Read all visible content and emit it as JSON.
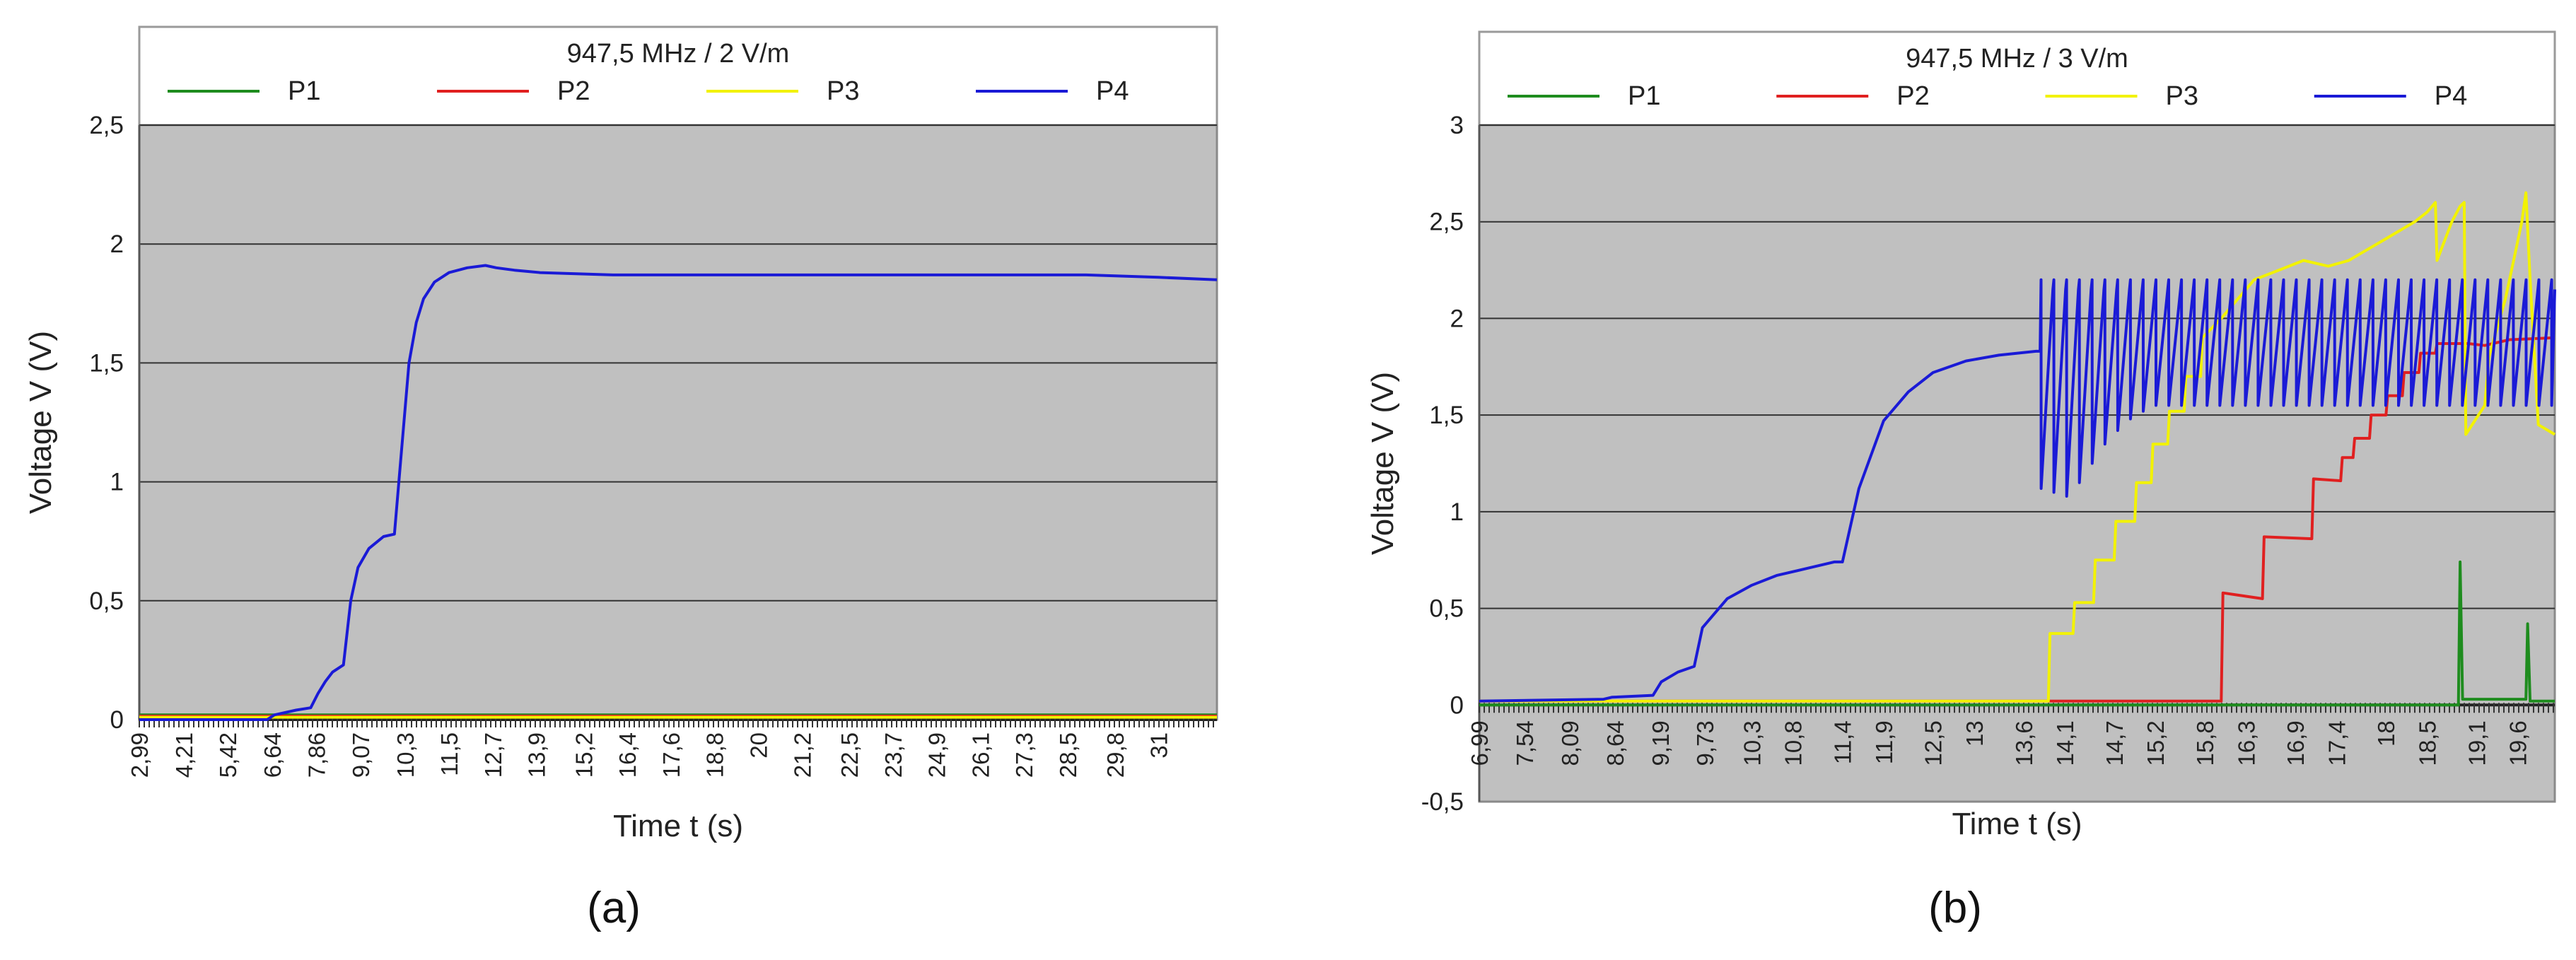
{
  "chart_data": [
    {
      "type": "line",
      "panel_label": "(a)",
      "title": "947,5 MHz / 2 V/m",
      "xlabel": "Time t (s)",
      "ylabel": "Voltage V (V)",
      "ylim": [
        0,
        2.5
      ],
      "yticks": [
        "0",
        "0,5",
        "1",
        "1,5",
        "2",
        "2,5"
      ],
      "y_tick_values": [
        0,
        0.5,
        1,
        1.5,
        2,
        2.5
      ],
      "xlim": [
        2.99,
        32.6
      ],
      "xticks": [
        "2,99",
        "4,21",
        "5,42",
        "6,64",
        "7,86",
        "9,07",
        "10,3",
        "11,5",
        "12,7",
        "13,9",
        "15,2",
        "16,4",
        "17,6",
        "18,8",
        "20",
        "21,2",
        "22,5",
        "23,7",
        "24,9",
        "26,1",
        "27,3",
        "28,5",
        "29,8",
        "31"
      ],
      "x_tick_values": [
        2.99,
        4.21,
        5.42,
        6.64,
        7.86,
        9.07,
        10.3,
        11.5,
        12.7,
        13.9,
        15.2,
        16.4,
        17.6,
        18.8,
        20,
        21.2,
        22.5,
        23.7,
        24.9,
        26.1,
        27.3,
        28.5,
        29.8,
        31
      ],
      "grid": true,
      "legend_position": "top",
      "background_color": "#c0c0c0",
      "series": [
        {
          "name": "P1",
          "color": "#1e8c1e",
          "x": [
            2.99,
            32.6
          ],
          "y": [
            0.02,
            0.02
          ]
        },
        {
          "name": "P2",
          "color": "#e02020",
          "x": [
            2.99,
            32.6
          ],
          "y": [
            0.015,
            0.015
          ]
        },
        {
          "name": "P3",
          "color": "#f2f200",
          "x": [
            2.99,
            32.6
          ],
          "y": [
            0.01,
            0.01
          ]
        },
        {
          "name": "P4",
          "color": "#1a1ad6",
          "x": [
            2.99,
            6.5,
            6.7,
            7.3,
            7.7,
            7.9,
            8.1,
            8.3,
            8.6,
            8.8,
            9.0,
            9.3,
            9.7,
            10.0,
            10.15,
            10.4,
            10.6,
            10.8,
            11.1,
            11.5,
            12.0,
            12.5,
            12.8,
            13.3,
            14.0,
            16.0,
            20.0,
            25.0,
            29.0,
            31.0,
            32.6
          ],
          "y": [
            0,
            0,
            0.02,
            0.04,
            0.05,
            0.11,
            0.16,
            0.2,
            0.23,
            0.5,
            0.64,
            0.72,
            0.77,
            0.78,
            1.05,
            1.5,
            1.67,
            1.77,
            1.84,
            1.88,
            1.9,
            1.91,
            1.9,
            1.89,
            1.88,
            1.87,
            1.87,
            1.87,
            1.87,
            1.86,
            1.85
          ]
        }
      ]
    },
    {
      "type": "line",
      "panel_label": "(b)",
      "title": "947,5 MHz / 3 V/m",
      "xlabel": "Time t (s)",
      "ylabel": "Voltage V (V)",
      "ylim": [
        -0.5,
        3
      ],
      "yticks": [
        "-0,5",
        "0",
        "0,5",
        "1",
        "1,5",
        "2",
        "2,5",
        "3"
      ],
      "y_tick_values": [
        -0.5,
        0,
        0.5,
        1,
        1.5,
        2,
        2.5,
        3
      ],
      "xlim": [
        6.99,
        20.05
      ],
      "xticks": [
        "6,99",
        "7,54",
        "8,09",
        "8,64",
        "9,19",
        "9,73",
        "10,3",
        "10,8",
        "11,4",
        "11,9",
        "12,5",
        "13",
        "13,6",
        "14,1",
        "14,7",
        "15,2",
        "15,8",
        "16,3",
        "16,9",
        "17,4",
        "18",
        "18,5",
        "19,1",
        "19,6"
      ],
      "x_tick_values": [
        6.99,
        7.54,
        8.09,
        8.64,
        9.19,
        9.73,
        10.3,
        10.8,
        11.4,
        11.9,
        12.5,
        13,
        13.6,
        14.1,
        14.7,
        15.2,
        15.8,
        16.3,
        16.9,
        17.4,
        18,
        18.5,
        19.1,
        19.6
      ],
      "grid": true,
      "legend_position": "top",
      "background_color": "#c0c0c0",
      "series": [
        {
          "name": "P1",
          "color": "#1e8c1e",
          "x": [
            6.99,
            18.88,
            18.9,
            18.93,
            19.7,
            19.72,
            19.75,
            20.05
          ],
          "y": [
            0,
            0,
            0.74,
            0.03,
            0.03,
            0.42,
            0.02,
            0.02
          ]
        },
        {
          "name": "P2",
          "color": "#e02020",
          "x": [
            6.99,
            16.0,
            16.02,
            16.5,
            16.52,
            17.1,
            17.12,
            17.45,
            17.47,
            17.6,
            17.62,
            17.8,
            17.82,
            18.0,
            18.02,
            18.2,
            18.22,
            18.4,
            18.42,
            18.6,
            18.62,
            19.0,
            19.2,
            19.5,
            20.05
          ],
          "y": [
            0.02,
            0.02,
            0.58,
            0.55,
            0.87,
            0.86,
            1.17,
            1.16,
            1.28,
            1.28,
            1.38,
            1.38,
            1.5,
            1.5,
            1.6,
            1.6,
            1.72,
            1.72,
            1.82,
            1.82,
            1.87,
            1.87,
            1.86,
            1.89,
            1.9
          ]
        },
        {
          "name": "P3",
          "color": "#f2f200",
          "x": [
            6.99,
            13.9,
            13.92,
            14.2,
            14.22,
            14.45,
            14.47,
            14.7,
            14.72,
            14.95,
            14.97,
            15.15,
            15.17,
            15.35,
            15.37,
            15.55,
            15.57,
            15.75,
            15.77,
            16.0,
            16.2,
            16.4,
            16.7,
            17.0,
            17.3,
            17.55,
            17.75,
            17.95,
            18.15,
            18.35,
            18.5,
            18.6,
            18.62,
            18.8,
            18.9,
            18.95,
            18.97,
            19.2,
            19.25,
            19.45,
            19.55,
            19.65,
            19.7,
            19.75,
            19.85,
            20.05
          ],
          "y": [
            0.02,
            0.02,
            0.37,
            0.37,
            0.53,
            0.53,
            0.75,
            0.75,
            0.95,
            0.95,
            1.15,
            1.15,
            1.35,
            1.35,
            1.52,
            1.52,
            1.7,
            1.7,
            1.9,
            2.0,
            2.1,
            2.2,
            2.25,
            2.3,
            2.27,
            2.3,
            2.35,
            2.4,
            2.45,
            2.5,
            2.55,
            2.6,
            2.3,
            2.5,
            2.58,
            2.6,
            1.4,
            1.55,
            1.8,
            2.1,
            2.3,
            2.5,
            2.65,
            2.2,
            1.45,
            1.4
          ]
        },
        {
          "name": "P4",
          "color": "#1a1ad6",
          "x": [
            6.99,
            8.5,
            8.6,
            9.1,
            9.2,
            9.4,
            9.6,
            9.7,
            10.0,
            10.3,
            10.6,
            11.0,
            11.3,
            11.4,
            11.6,
            11.9,
            12.2,
            12.5,
            12.9,
            13.3,
            13.75,
            13.8
          ],
          "y": [
            0.02,
            0.03,
            0.04,
            0.05,
            0.12,
            0.17,
            0.2,
            0.4,
            0.55,
            0.62,
            0.67,
            0.71,
            0.74,
            0.74,
            1.12,
            1.47,
            1.62,
            1.72,
            1.78,
            1.81,
            1.83,
            1.83
          ],
          "oscillation": {
            "x_start": 13.8,
            "x_end": 20.05,
            "period_s": 0.155,
            "peak": 2.2,
            "troughs": [
              1.12,
              1.1,
              1.08,
              1.15,
              1.25,
              1.35,
              1.42,
              1.48,
              1.52,
              1.55
            ]
          }
        }
      ]
    }
  ]
}
